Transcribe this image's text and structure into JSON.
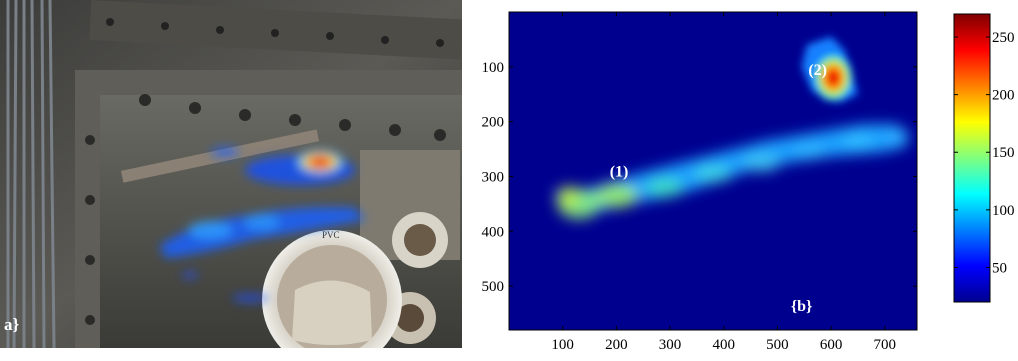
{
  "panel_a": {
    "label": "a}",
    "photo_label": "PVC"
  },
  "chart_data": {
    "type": "heatmap",
    "x_ticks": [
      100,
      200,
      300,
      400,
      500,
      600,
      700
    ],
    "y_ticks": [
      100,
      200,
      300,
      400,
      500
    ],
    "xlim": [
      0,
      760
    ],
    "ylim": [
      0,
      580
    ],
    "y_reversed": true,
    "colorbar": {
      "ticks": [
        50,
        100,
        150,
        200,
        250
      ],
      "range": [
        20,
        270
      ],
      "colormap": "jet"
    },
    "background_color": "#00008f",
    "annotations": [
      {
        "label": "(1)",
        "x": 205,
        "y": 300
      },
      {
        "label": "(2)",
        "x": 575,
        "y": 115
      },
      {
        "label": "{b}",
        "x": 545,
        "y": 545
      }
    ],
    "hot_spots": [
      {
        "name": "strip",
        "points": [
          [
            80,
            330
          ],
          [
            110,
            355
          ],
          [
            160,
            365
          ],
          [
            220,
            350
          ],
          [
            280,
            340
          ],
          [
            340,
            325
          ],
          [
            400,
            305
          ],
          [
            460,
            285
          ],
          [
            520,
            275
          ],
          [
            580,
            265
          ],
          [
            640,
            260
          ],
          [
            700,
            255
          ],
          [
            740,
            245
          ],
          [
            745,
            220
          ],
          [
            720,
            205
          ],
          [
            660,
            205
          ],
          [
            600,
            215
          ],
          [
            540,
            225
          ],
          [
            480,
            235
          ],
          [
            420,
            250
          ],
          [
            360,
            265
          ],
          [
            300,
            280
          ],
          [
            240,
            295
          ],
          [
            190,
            310
          ],
          [
            140,
            325
          ]
        ],
        "intensity": 110
      },
      {
        "name": "spot-2",
        "cx": 600,
        "cy": 115,
        "intensity": 265
      }
    ]
  }
}
